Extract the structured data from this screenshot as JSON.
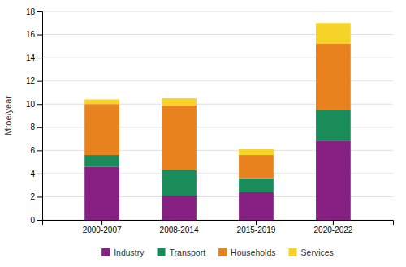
{
  "chart_data": {
    "type": "bar",
    "stacked": true,
    "categories": [
      "2000-2007",
      "2008-2014",
      "2015-2019",
      "2020-2022"
    ],
    "series": [
      {
        "name": "Industry",
        "color": "#862083",
        "values": [
          4.6,
          2.1,
          2.4,
          6.8
        ]
      },
      {
        "name": "Transport",
        "color": "#1A8C5A",
        "values": [
          1.0,
          2.2,
          1.2,
          2.7
        ]
      },
      {
        "name": "Households",
        "color": "#E8821E",
        "values": [
          4.4,
          5.6,
          2.0,
          5.7
        ]
      },
      {
        "name": "Services",
        "color": "#F5D327",
        "values": [
          0.4,
          0.6,
          0.5,
          1.8
        ]
      }
    ],
    "ylabel": "Mtoe/year",
    "ylim": [
      0,
      18
    ],
    "yticks": [
      0,
      2,
      4,
      6,
      8,
      10,
      12,
      14,
      16,
      18
    ],
    "grid": true,
    "legend": "bottom"
  }
}
